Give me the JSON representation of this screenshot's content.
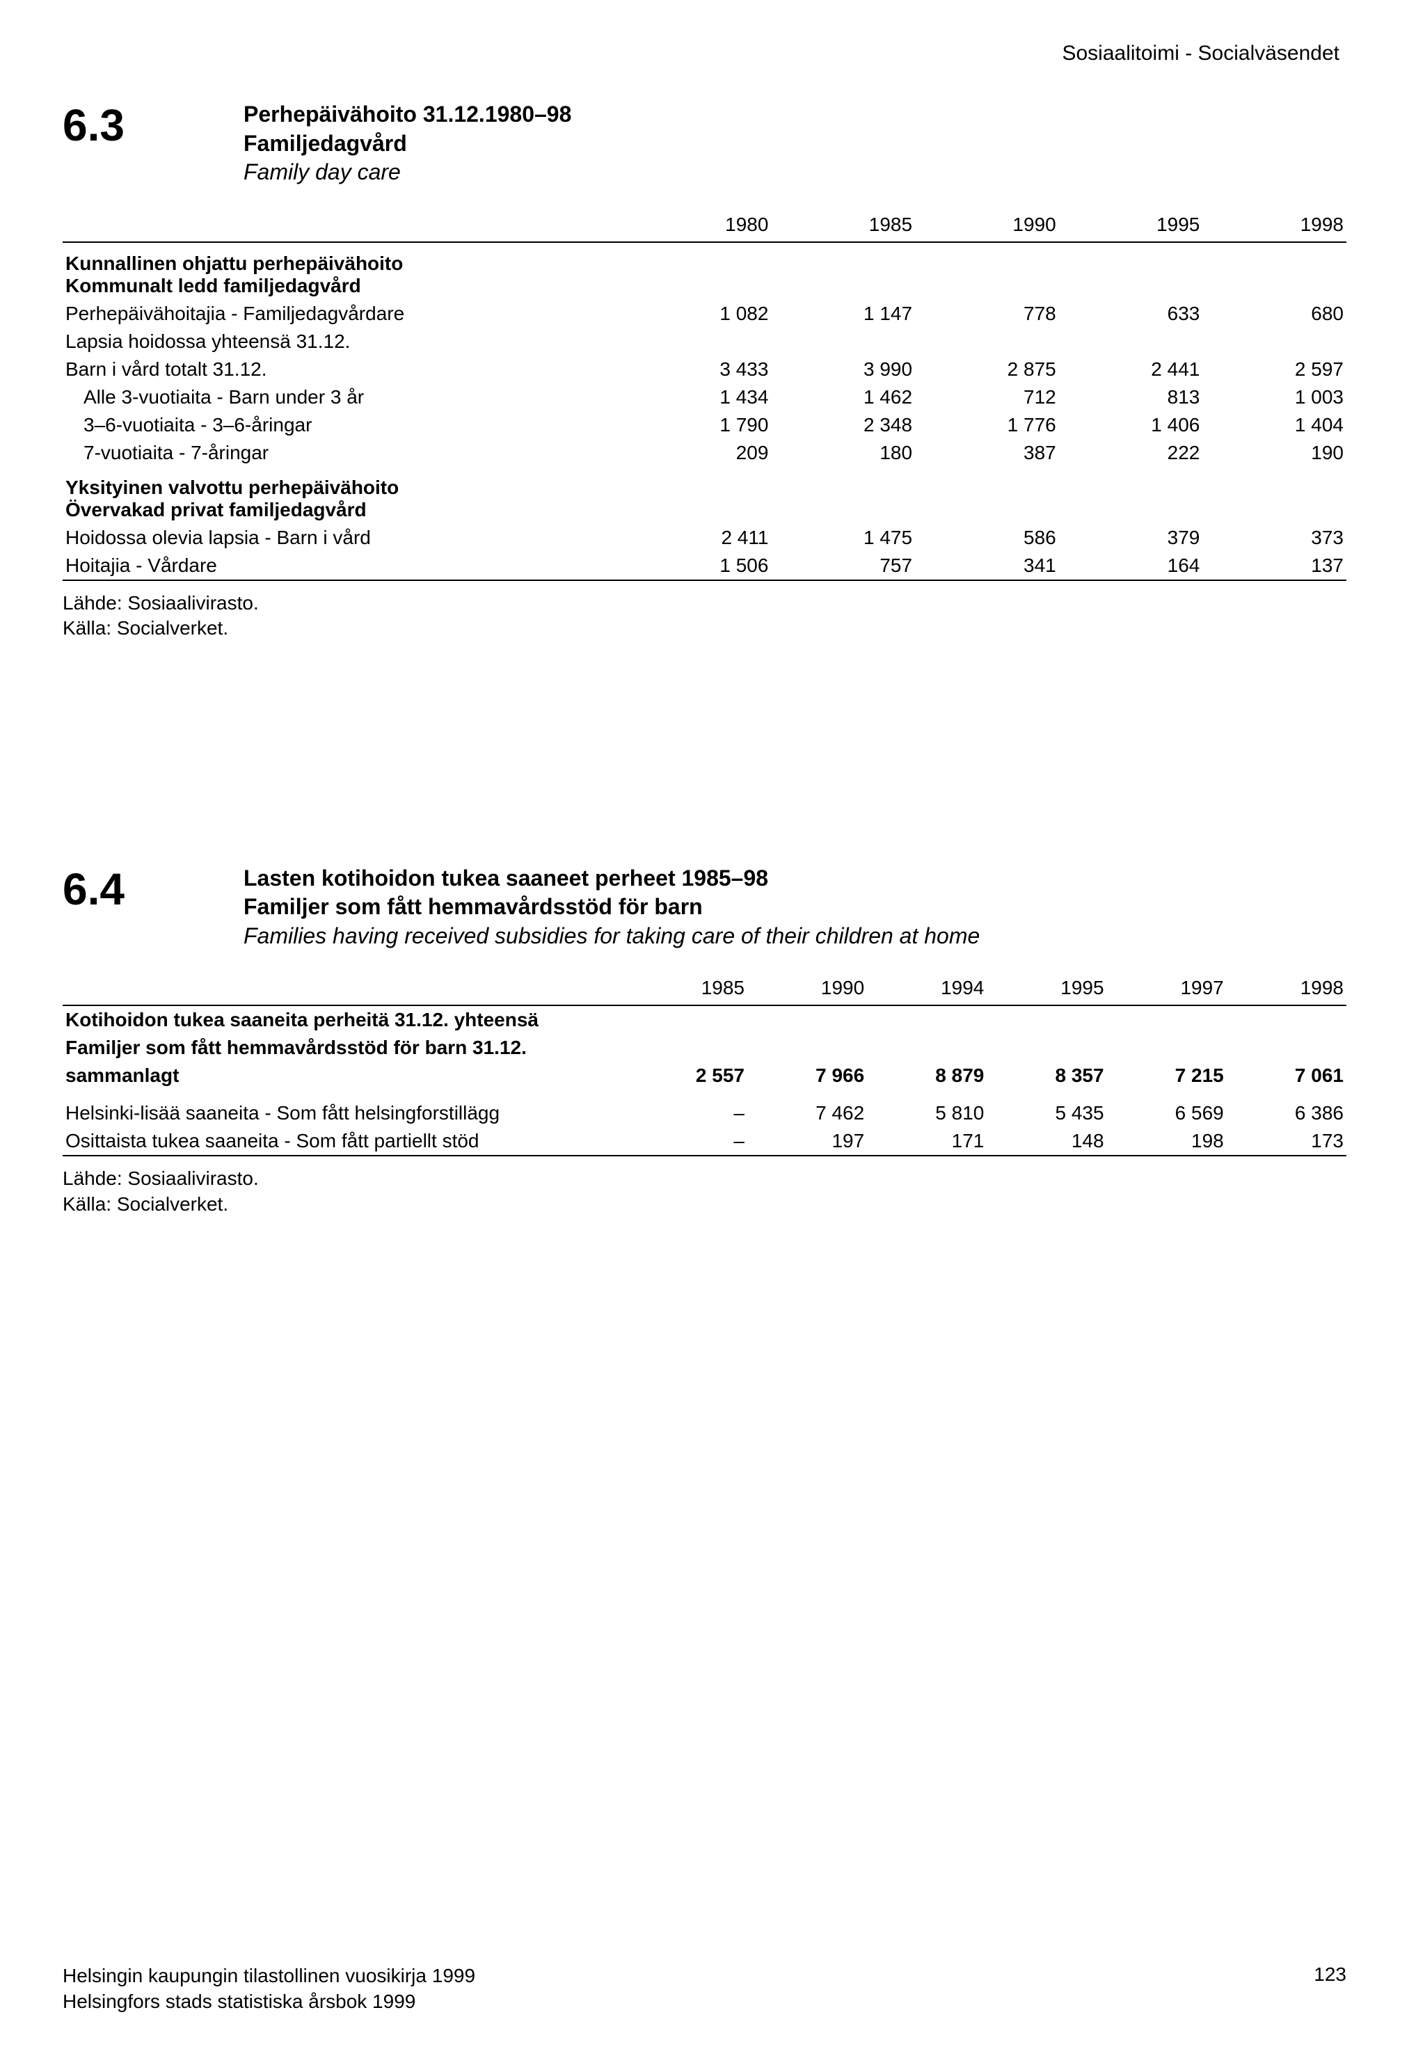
{
  "header_right": "Sosiaalitoimi - Socialväsendet",
  "section63": {
    "number": "6.3",
    "title_fi": "Perhepäivähoito 31.12.1980–98",
    "title_sv": "Familjedagvård",
    "title_en": "Family day care",
    "columns": [
      "",
      "1980",
      "1985",
      "1990",
      "1995",
      "1998"
    ],
    "group1_header1": "Kunnallinen ohjattu perhepäivähoito",
    "group1_header2": "Kommunalt ledd familjedagvård",
    "rows1": [
      {
        "label": "Perhepäivähoitajia - Familjedagvårdare",
        "v": [
          "1 082",
          "1 147",
          "778",
          "633",
          "680"
        ]
      },
      {
        "label": "Lapsia hoidossa yhteensä 31.12.",
        "v": [
          "",
          "",
          "",
          "",
          ""
        ]
      },
      {
        "label": "Barn i vård totalt 31.12.",
        "v": [
          "3 433",
          "3 990",
          "2 875",
          "2 441",
          "2 597"
        ]
      },
      {
        "label": "Alle 3-vuotiaita - Barn under 3 år",
        "v": [
          "1 434",
          "1 462",
          "712",
          "813",
          "1 003"
        ],
        "indent": true
      },
      {
        "label": "3–6-vuotiaita - 3–6-åringar",
        "v": [
          "1 790",
          "2 348",
          "1 776",
          "1 406",
          "1 404"
        ],
        "indent": true
      },
      {
        "label": "7-vuotiaita - 7-åringar",
        "v": [
          "209",
          "180",
          "387",
          "222",
          "190"
        ],
        "indent": true
      }
    ],
    "group2_header1": "Yksityinen valvottu perhepäivähoito",
    "group2_header2": "Övervakad privat familjedagvård",
    "rows2": [
      {
        "label": "Hoidossa olevia lapsia - Barn i vård",
        "v": [
          "2 411",
          "1 475",
          "586",
          "379",
          "373"
        ]
      },
      {
        "label": "Hoitajia - Vårdare",
        "v": [
          "1 506",
          "757",
          "341",
          "164",
          "137"
        ]
      }
    ],
    "source1": "Lähde: Sosiaalivirasto.",
    "source2": "Källa: Socialverket."
  },
  "section64": {
    "number": "6.4",
    "title_fi": "Lasten kotihoidon tukea saaneet perheet 1985–98",
    "title_sv": "Familjer som fått hemmavårdsstöd för barn",
    "title_en": "Families having received subsidies for taking care of their children at home",
    "columns": [
      "",
      "1985",
      "1990",
      "1994",
      "1995",
      "1997",
      "1998"
    ],
    "rows": [
      {
        "label": "Kotihoidon tukea saaneita perheitä 31.12. yhteensä",
        "v": [
          "",
          "",
          "",
          "",
          "",
          ""
        ],
        "header": true
      },
      {
        "label": "Familjer som fått hemmavårdsstöd för barn 31.12.",
        "v": [
          "",
          "",
          "",
          "",
          "",
          ""
        ],
        "header": true
      },
      {
        "label": "sammanlagt",
        "v": [
          "2 557",
          "7 966",
          "8 879",
          "8 357",
          "7 215",
          "7 061"
        ],
        "header": true
      },
      {
        "label": "Helsinki-lisää saaneita - Som fått helsingforstillägg",
        "v": [
          "–",
          "7 462",
          "5 810",
          "5 435",
          "6 569",
          "6 386"
        ],
        "space": true
      },
      {
        "label": "Osittaista tukea saaneita - Som fått partiellt stöd",
        "v": [
          "–",
          "197",
          "171",
          "148",
          "198",
          "173"
        ]
      }
    ],
    "source1": "Lähde: Sosiaalivirasto.",
    "source2": "Källa: Socialverket."
  },
  "footer": {
    "line1": "Helsingin kaupungin tilastollinen vuosikirja 1999",
    "line2": "Helsingfors stads statistiska årsbok 1999",
    "page": "123"
  }
}
